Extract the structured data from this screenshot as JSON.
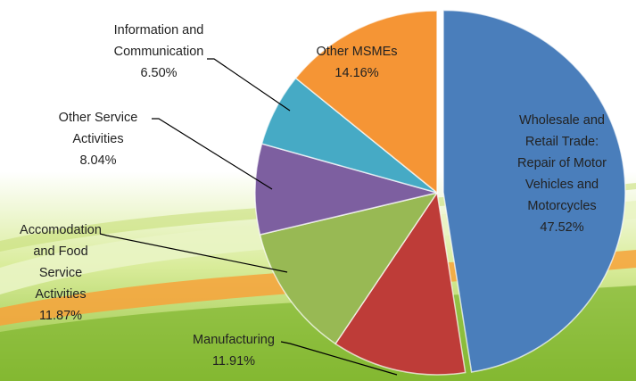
{
  "chart_data": {
    "type": "pie",
    "categories": [
      "Wholesale and Retail Trade: Repair of Motor Vehicles and Motorcycles",
      "Manufacturing",
      "Accomodation and Food Service Activities",
      "Other Service Activities",
      "Information and Communication",
      "Other MSMEs"
    ],
    "values": [
      47.52,
      11.91,
      11.87,
      8.04,
      6.5,
      14.16
    ],
    "value_labels": [
      "47.52%",
      "11.91%",
      "11.87%",
      "8.04%",
      "6.50%",
      "14.16%"
    ],
    "colors": [
      "#4a7ebb",
      "#be3c38",
      "#98b954",
      "#7d5fa0",
      "#46aac5",
      "#f59535"
    ]
  }
}
